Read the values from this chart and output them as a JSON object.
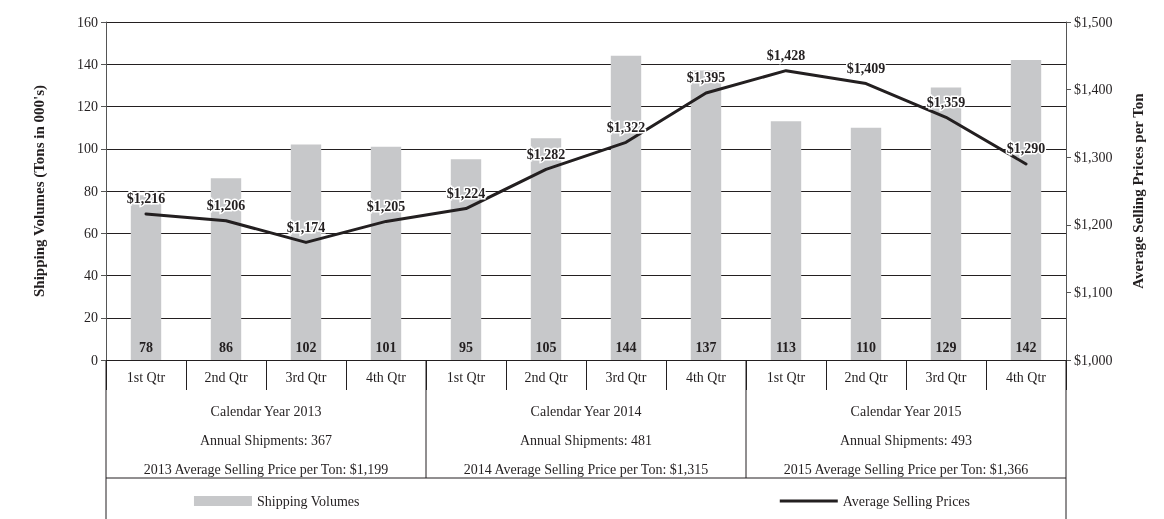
{
  "chart_data": {
    "type": "bar",
    "categories": [
      "1st Qtr",
      "2nd Qtr",
      "3rd Qtr",
      "4th Qtr",
      "1st Qtr",
      "2nd Qtr",
      "3rd Qtr",
      "4th Qtr",
      "1st Qtr",
      "2nd Qtr",
      "3rd Qtr",
      "4th Qtr"
    ],
    "series": [
      {
        "name": "Shipping Volumes",
        "type": "bar",
        "color": "#c7c8ca",
        "values": [
          78,
          86,
          102,
          101,
          95,
          105,
          144,
          137,
          113,
          110,
          129,
          142
        ],
        "value_labels": [
          "78",
          "86",
          "102",
          "101",
          "95",
          "105",
          "144",
          "137",
          "113",
          "110",
          "129",
          "142"
        ]
      },
      {
        "name": "Average Selling Prices",
        "type": "line",
        "axis": "y2",
        "color": "#231f20",
        "values": [
          1216,
          1206,
          1174,
          1205,
          1224,
          1282,
          1322,
          1395,
          1428,
          1409,
          1359,
          1290
        ],
        "value_labels": [
          "$1,216",
          "$1,206",
          "$1,174",
          "$1,205",
          "$1,224",
          "$1,282",
          "$1,322",
          "$1,395",
          "$1,428",
          "$1,409",
          "$1,359",
          "$1,290"
        ]
      }
    ],
    "ylabel": "Shipping Volumes (Tons in 000's)",
    "y2label": "Average Selling Prices per Ton",
    "ylim": [
      0,
      160
    ],
    "yticks": [
      0,
      20,
      40,
      60,
      80,
      100,
      120,
      140,
      160
    ],
    "y2lim": [
      1000,
      1500
    ],
    "y2ticks": [
      {
        "value": 1000,
        "label": "$1,000"
      },
      {
        "value": 1100,
        "label": "$1,100"
      },
      {
        "value": 1200,
        "label": "$1,200"
      },
      {
        "value": 1300,
        "label": "$1,300"
      },
      {
        "value": 1400,
        "label": "$1,400"
      },
      {
        "value": 1500,
        "label": "$1,500"
      }
    ],
    "annotations": [
      "Calendar Year 2013",
      "Annual Shipments: 367",
      "2013 Average Selling Price per Ton: $1,199",
      "Calendar Year 2014",
      "Annual Shipments: 481",
      "2014 Average Selling Price per Ton: $1,315",
      "Calendar Year 2015",
      "Annual Shipments: 493",
      "2015 Average Selling Price per Ton: $1,366"
    ],
    "grid": "y",
    "legend": "bottom",
    "marker": "none",
    "line_style": "solid"
  }
}
